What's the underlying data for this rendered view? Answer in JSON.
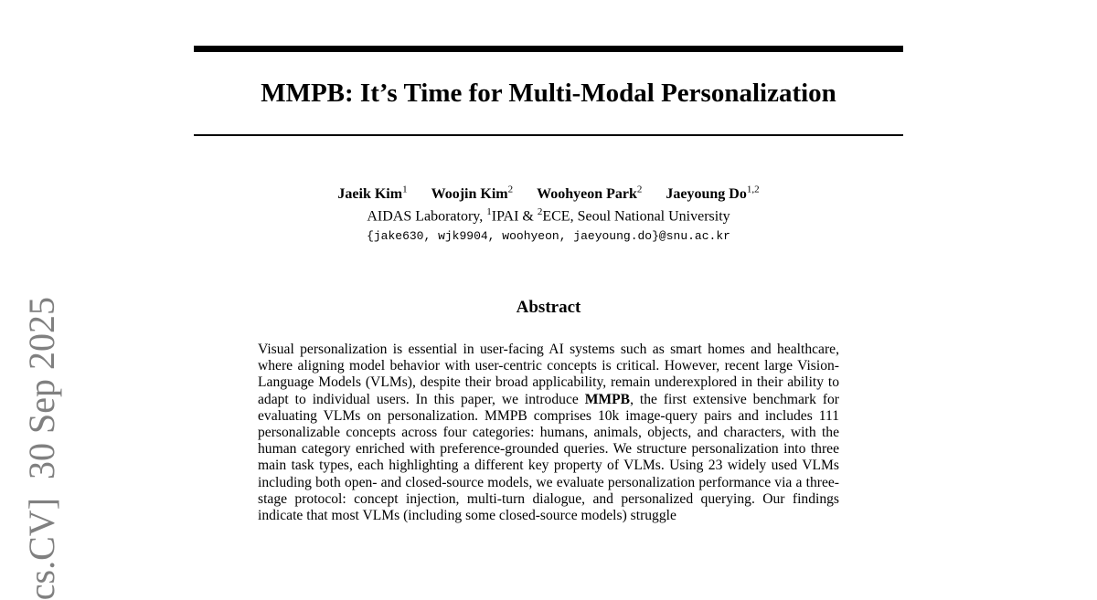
{
  "paper": {
    "title": "MMPB: It’s Time for Multi-Modal Personalization",
    "authors": [
      {
        "name": "Jaeik Kim",
        "aff": "1"
      },
      {
        "name": "Woojin Kim",
        "aff": "2"
      },
      {
        "name": "Woohyeon Park",
        "aff": "2"
      },
      {
        "name": "Jaeyoung Do",
        "aff": "1,2"
      }
    ],
    "affiliation": {
      "pre": "AIDAS Laboratory, ",
      "s1": "1",
      "t1": "IPAI & ",
      "s2": "2",
      "t2": "ECE, Seoul National University"
    },
    "email": "{jake630, wjk9904, woohyeon, jaeyoung.do}@snu.ac.kr",
    "abstract_heading": "Abstract",
    "abstract": {
      "before": "Visual personalization is essential in user-facing AI systems such as smart homes and healthcare, where aligning model behavior with user-centric concepts is critical. However, recent large Vision-Language Models (VLMs), despite their broad applicability, remain underexplored in their ability to adapt to individual users. In this paper, we introduce ",
      "bold": "MMPB",
      "after": ", the first extensive benchmark for evaluating VLMs on personalization. MMPB comprises 10k image-query pairs and includes 111 personalizable concepts across four categories: humans, animals, objects, and characters, with the human category enriched with preference-grounded queries. We structure personalization into three main task types, each highlighting a different key property of VLMs. Using 23 widely used VLMs including both open- and closed-source models, we evaluate personalization performance via a three-stage protocol: concept injection, multi-turn dialogue, and personalized querying. Our findings indicate that most VLMs (including some closed-source models) struggle"
    },
    "side_stamp": "cs.CV]  30 Sep 2025"
  }
}
